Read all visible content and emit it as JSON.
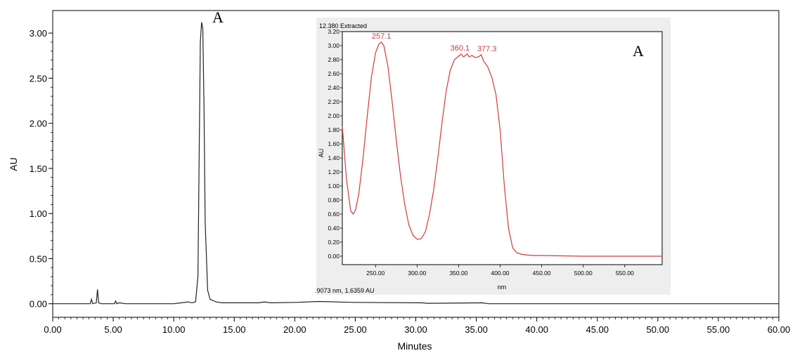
{
  "chart_data": [
    {
      "type": "line",
      "title": "",
      "xlabel": "Minutes",
      "ylabel": "AU",
      "xlim": [
        0,
        60
      ],
      "ylim": [
        -0.15,
        3.25
      ],
      "x_ticks": [
        "0.00",
        "5.00",
        "10.00",
        "15.00",
        "20.00",
        "25.00",
        "30.00",
        "35.00",
        "40.00",
        "45.00",
        "50.00",
        "55.00",
        "60.00"
      ],
      "y_ticks": [
        "0.00",
        "0.50",
        "1.00",
        "1.50",
        "2.00",
        "2.50",
        "3.00"
      ],
      "x_tick_values": [
        0,
        5,
        10,
        15,
        20,
        25,
        30,
        35,
        40,
        45,
        50,
        55,
        60
      ],
      "y_tick_values": [
        0,
        0.5,
        1,
        1.5,
        2,
        2.5,
        3
      ],
      "grid": false,
      "peak_label": "A",
      "line_color": "#222222",
      "series": [
        {
          "x": [
            0,
            3.1,
            3.2,
            3.3,
            3.6,
            3.7,
            3.8,
            4.0,
            5.1,
            5.2,
            5.3,
            5.5,
            6,
            8,
            10,
            11.2,
            11.5,
            11.8,
            12.0,
            12.1,
            12.2,
            12.3,
            12.4,
            12.5,
            12.6,
            12.8,
            13.0,
            13.5,
            14,
            17,
            17.5,
            18,
            20,
            22,
            25,
            30.5,
            31,
            35.5,
            36,
            40,
            50,
            60
          ],
          "y": [
            0,
            0,
            0.05,
            0,
            0.01,
            0.16,
            0.01,
            0,
            0,
            0.03,
            0,
            0.01,
            0,
            0,
            0,
            0.02,
            0.01,
            0.02,
            0.3,
            1.6,
            2.9,
            3.12,
            3.05,
            2.2,
            0.9,
            0.15,
            0.05,
            0.02,
            0.01,
            0.01,
            0.02,
            0.01,
            0.015,
            0.025,
            0.015,
            0.01,
            0.005,
            0.01,
            0,
            0,
            0,
            0
          ]
        }
      ]
    },
    {
      "type": "line",
      "title": "12.380 Extracted",
      "xlabel": "nm",
      "ylabel": "AU",
      "xlim": [
        210,
        595
      ],
      "ylim": [
        -0.12,
        3.2
      ],
      "x_ticks": [
        "250.00",
        "300.00",
        "350.00",
        "400.00",
        "450.00",
        "500.00",
        "550.00"
      ],
      "x_tick_values": [
        250,
        300,
        350,
        400,
        450,
        500,
        550
      ],
      "y_ticks": [
        "0.00",
        "0.20",
        "0.40",
        "0.60",
        "0.80",
        "1.00",
        "1.20",
        "1.40",
        "1.60",
        "1.80",
        "2.00",
        "2.20",
        "2.40",
        "2.60",
        "2.80",
        "3.00",
        "3.20"
      ],
      "y_tick_values": [
        0,
        0.2,
        0.4,
        0.6,
        0.8,
        1.0,
        1.2,
        1.4,
        1.6,
        1.8,
        2.0,
        2.2,
        2.4,
        2.6,
        2.8,
        3.0,
        3.2
      ],
      "grid": false,
      "line_color": "#d33a3a",
      "peak_annotations": [
        {
          "label": "257.1",
          "x": 257.1,
          "y": 3.05
        },
        {
          "label": "360.1",
          "x": 360.1,
          "y": 2.88
        },
        {
          "label": "377.3",
          "x": 377.3,
          "y": 2.87
        }
      ],
      "peak_label": "A",
      "status_text": ".9073 nm, 1.6359 AU",
      "series": [
        {
          "x": [
            210,
            215,
            220,
            223,
            226,
            230,
            235,
            240,
            245,
            250,
            254,
            257.1,
            260,
            265,
            270,
            275,
            280,
            285,
            290,
            295,
            300,
            305,
            310,
            315,
            320,
            325,
            330,
            335,
            340,
            345,
            350,
            353,
            356,
            360.1,
            363,
            366,
            370,
            374,
            377.3,
            380,
            385,
            390,
            395,
            400,
            405,
            410,
            415,
            420,
            425,
            430,
            440,
            450,
            500,
            550,
            595
          ],
          "y": [
            1.85,
            1.1,
            0.65,
            0.6,
            0.66,
            0.9,
            1.4,
            2.0,
            2.55,
            2.9,
            3.02,
            3.05,
            3.0,
            2.7,
            2.2,
            1.65,
            1.15,
            0.75,
            0.45,
            0.3,
            0.24,
            0.25,
            0.35,
            0.6,
            0.95,
            1.4,
            1.9,
            2.35,
            2.65,
            2.8,
            2.85,
            2.88,
            2.84,
            2.88,
            2.84,
            2.86,
            2.83,
            2.84,
            2.87,
            2.78,
            2.7,
            2.55,
            2.3,
            1.8,
            1.0,
            0.4,
            0.12,
            0.05,
            0.03,
            0.02,
            0.01,
            0.01,
            0.0,
            0.0,
            0.0
          ]
        }
      ]
    }
  ]
}
